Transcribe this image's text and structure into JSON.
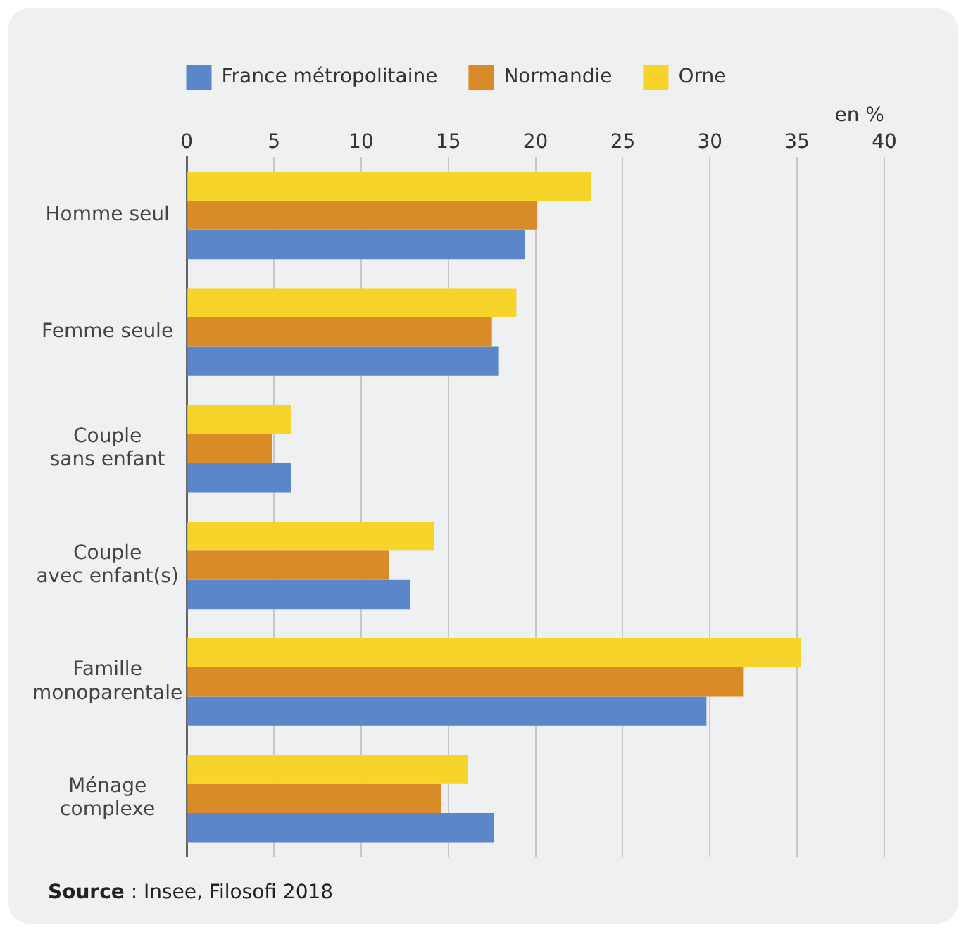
{
  "chart_data": {
    "type": "bar",
    "orientation": "horizontal",
    "xlabel": "en %",
    "categories": [
      "Homme seul",
      "Femme seule",
      "Couple\nsans enfant",
      "Couple\navec enfant(s)",
      "Famille\nmonoparentale",
      "Ménage\ncomplexe"
    ],
    "series": [
      {
        "name": "France métropolitaine",
        "color": "#5b86c9",
        "values": [
          19.4,
          17.9,
          6.0,
          12.8,
          29.8,
          17.6
        ]
      },
      {
        "name": "Normandie",
        "color": "#d98b27",
        "values": [
          20.1,
          17.5,
          4.9,
          11.6,
          31.9,
          14.6
        ]
      },
      {
        "name": "Orne",
        "color": "#f6d42a",
        "values": [
          23.2,
          18.9,
          6.0,
          14.2,
          35.2,
          16.1
        ]
      }
    ],
    "xlim": [
      0,
      40
    ],
    "xticks": [
      0,
      5,
      10,
      15,
      20,
      25,
      30,
      35,
      40
    ],
    "grid": "x",
    "legend": "top",
    "annotations": [
      "Source : Insee, Filosofi 2018"
    ]
  }
}
